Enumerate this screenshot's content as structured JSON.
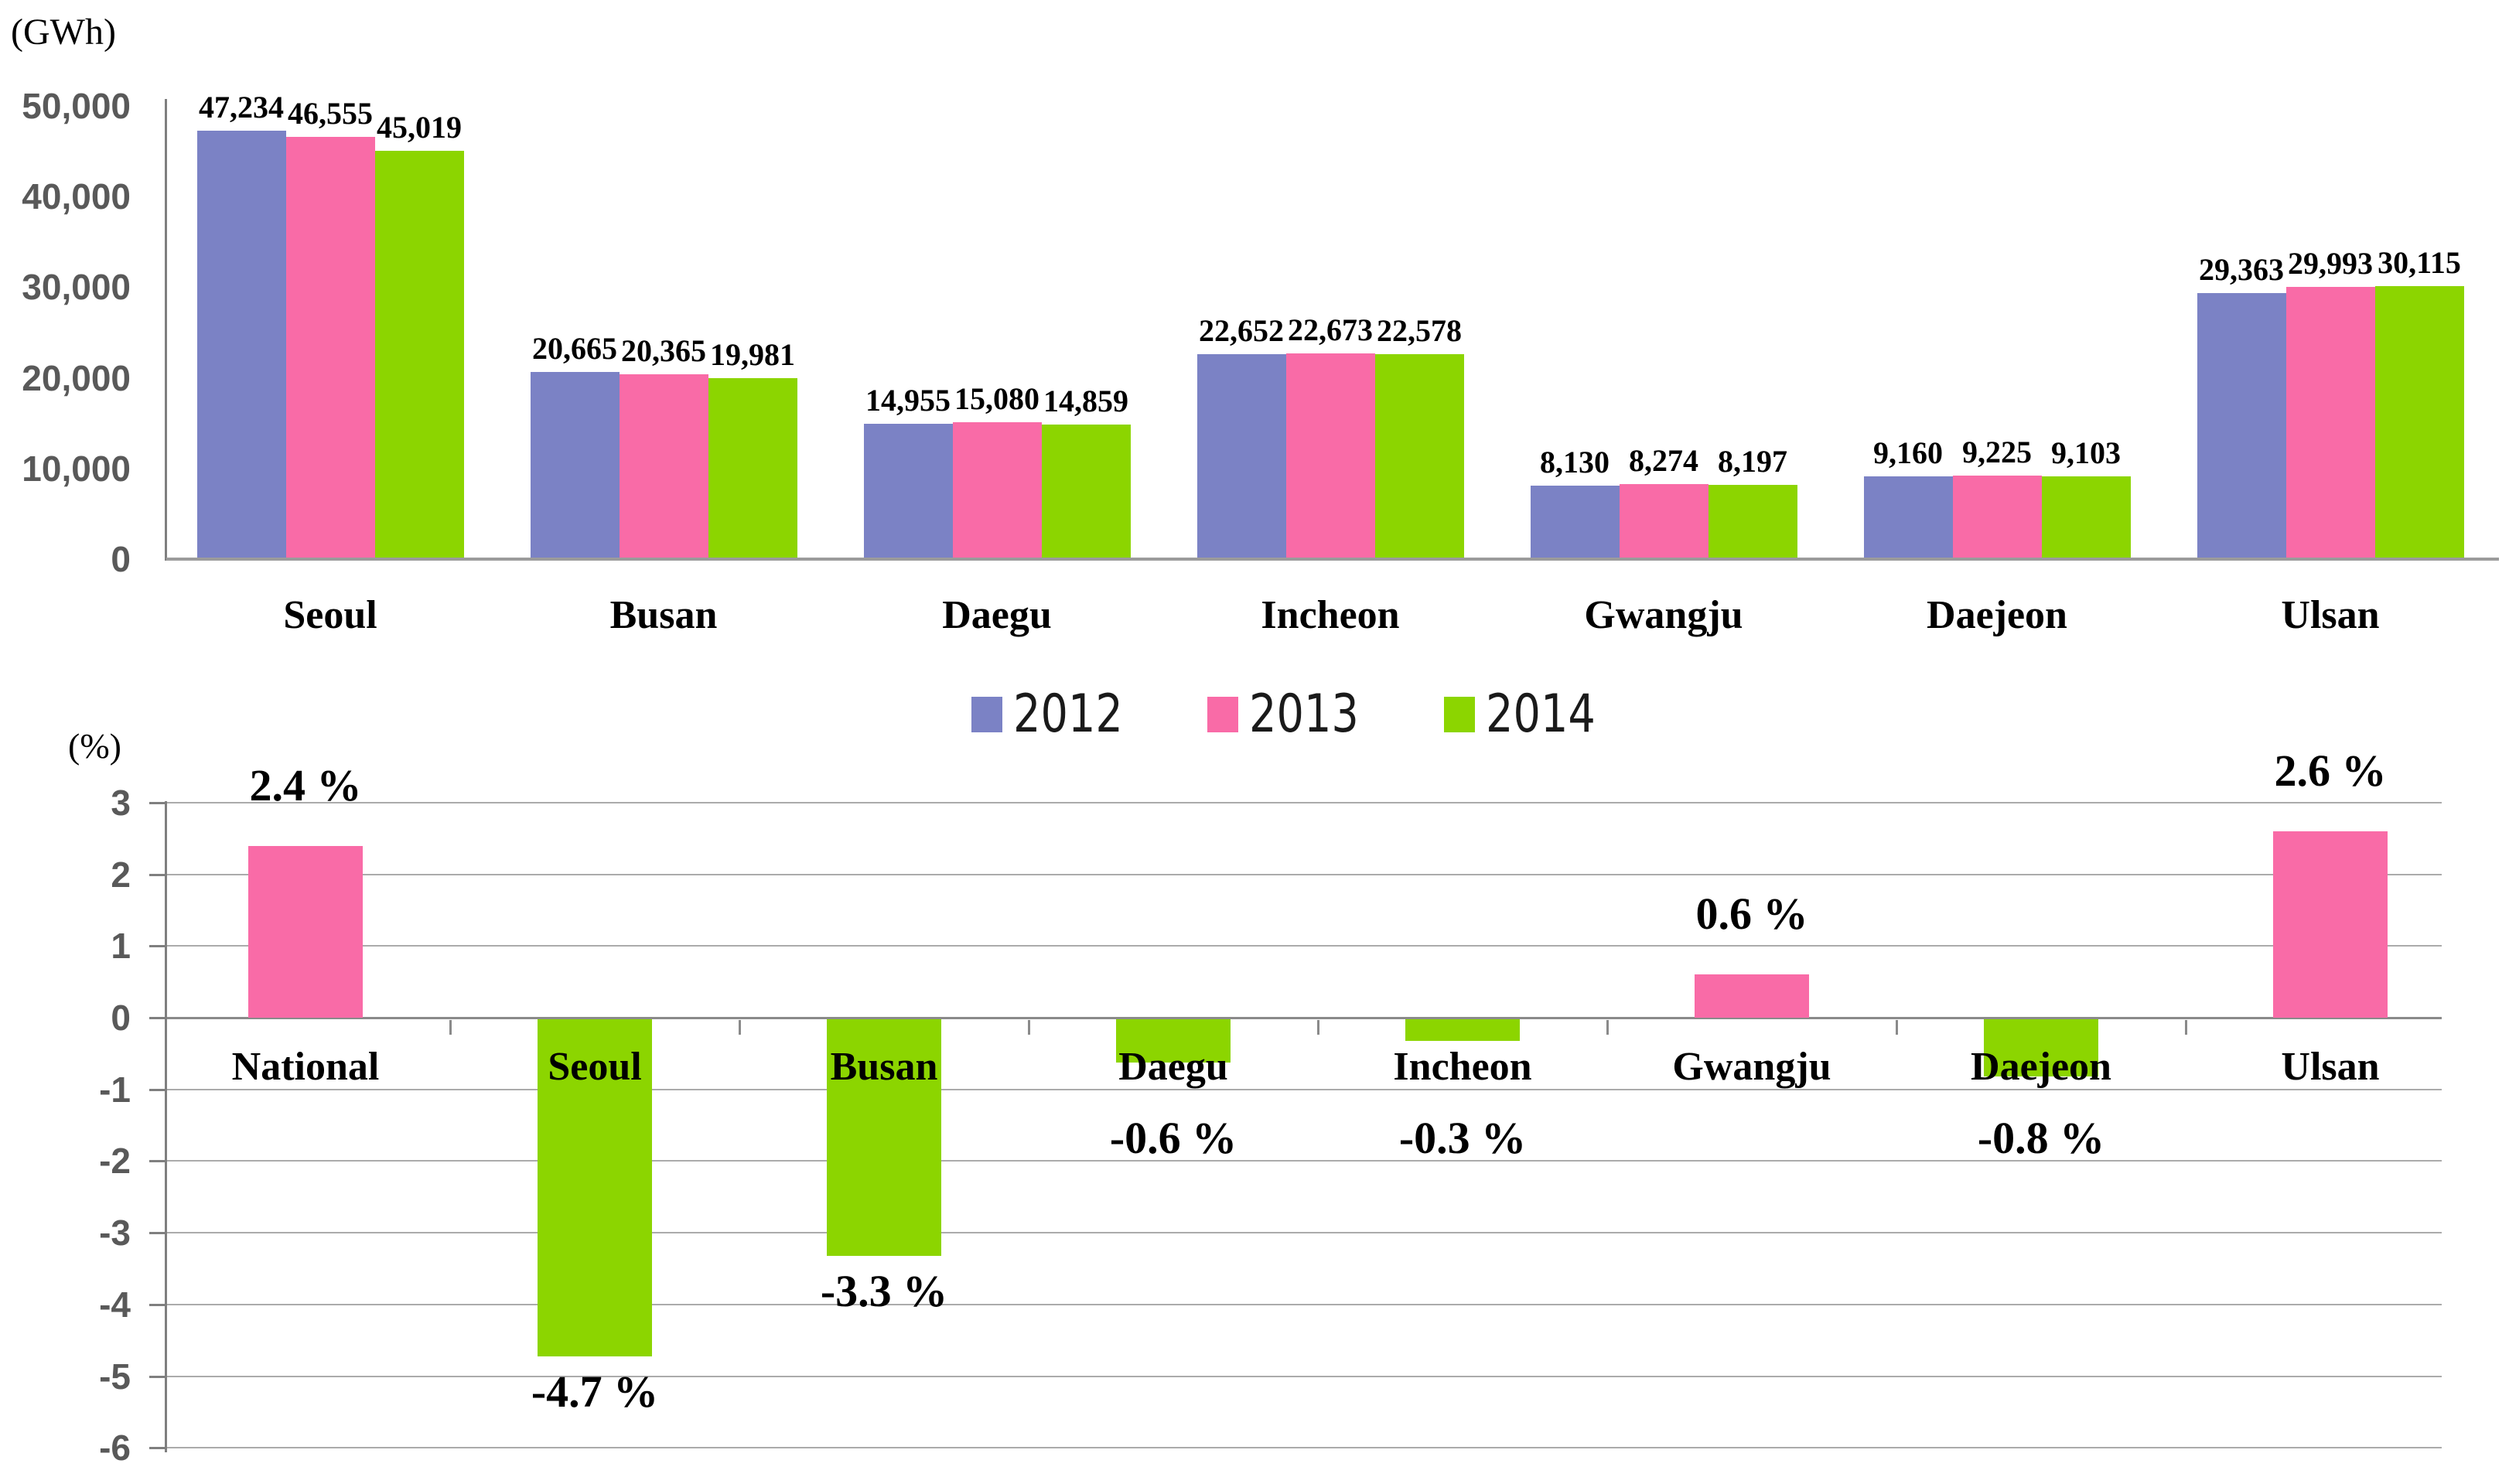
{
  "colors": {
    "series_2012": "#7B82C5",
    "series_2013": "#F96BA7",
    "series_2014": "#8CD500",
    "axis_line": "#7F7F7F",
    "grid_line": "#ABABAB",
    "zero_line": "#8A8A8A",
    "tick_text": "#595959",
    "label_text": "#000000"
  },
  "legend": {
    "items": [
      {
        "label": "2012",
        "color": "#7B82C5"
      },
      {
        "label": "2013",
        "color": "#F96BA7"
      },
      {
        "label": "2014",
        "color": "#8CD500"
      }
    ]
  },
  "chart_data": [
    {
      "type": "bar",
      "unit_label": "(GWh)",
      "categories": [
        "Seoul",
        "Busan",
        "Daegu",
        "Incheon",
        "Gwangju",
        "Daejeon",
        "Ulsan"
      ],
      "series": [
        {
          "name": "2012",
          "color": "#7B82C5",
          "values": [
            47234,
            20665,
            14955,
            22652,
            8130,
            9160,
            29363
          ],
          "value_labels": [
            "47,234",
            "20,665",
            "14,955",
            "22,652",
            "8,130",
            "9,160",
            "29,363"
          ]
        },
        {
          "name": "2013",
          "color": "#F96BA7",
          "values": [
            46555,
            20365,
            15080,
            22673,
            8274,
            9225,
            29993
          ],
          "value_labels": [
            "46,555",
            "20,365",
            "15,080",
            "22,673",
            "8,274",
            "9,225",
            "29,993"
          ]
        },
        {
          "name": "2014",
          "color": "#8CD500",
          "values": [
            45019,
            19981,
            14859,
            22578,
            8197,
            9103,
            30115
          ],
          "value_labels": [
            "45,019",
            "19,981",
            "14,859",
            "22,578",
            "8,197",
            "9,103",
            "30,115"
          ]
        }
      ],
      "ylim": [
        0,
        50000
      ],
      "yticks": [
        0,
        10000,
        20000,
        30000,
        40000,
        50000
      ],
      "ytick_labels": [
        "0",
        "10,000",
        "20,000",
        "30,000",
        "40,000",
        "50,000"
      ],
      "grid": false,
      "legend_position": "bottom"
    },
    {
      "type": "bar",
      "unit_label": "(%)",
      "categories": [
        "National",
        "Seoul",
        "Busan",
        "Daegu",
        "Incheon",
        "Gwangju",
        "Daejeon",
        "Ulsan"
      ],
      "values": [
        2.4,
        -4.7,
        -3.3,
        -0.6,
        -0.3,
        0.6,
        -0.8,
        2.6
      ],
      "value_labels": [
        "2.4 %",
        "-4.7 %",
        "-3.3 %",
        "-0.6 %",
        "-0.3 %",
        "0.6 %",
        "-0.8 %",
        "2.6 %"
      ],
      "bar_colors": [
        "#F96BA7",
        "#8CD500",
        "#8CD500",
        "#8CD500",
        "#8CD500",
        "#F96BA7",
        "#8CD500",
        "#F96BA7"
      ],
      "ylim": [
        -6,
        3
      ],
      "yticks": [
        3,
        2,
        1,
        0,
        -1,
        -2,
        -3,
        -4,
        -5,
        -6
      ],
      "ytick_labels": [
        "3",
        "2",
        "1",
        "0",
        "-1",
        "-2",
        "-3",
        "-4",
        "-5",
        "-6"
      ],
      "grid": true
    }
  ]
}
